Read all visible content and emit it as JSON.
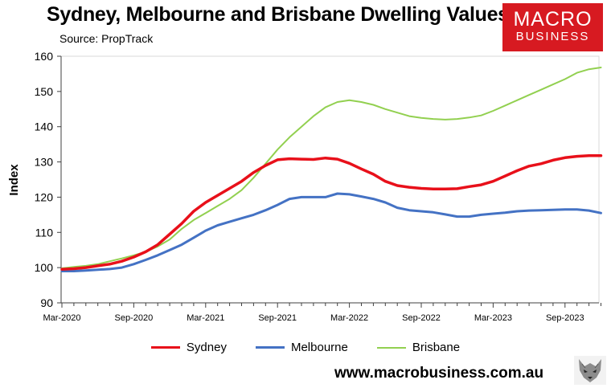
{
  "header": {
    "title": "Sydney, Melbourne and Brisbane Dwelling Values",
    "subtitle": "Source: PropTrack"
  },
  "logo": {
    "line1": "MACRO",
    "line2": "BUSINESS",
    "color": "#d71a21"
  },
  "footer": {
    "url": "www.macrobusiness.com.au"
  },
  "chart_data": {
    "type": "line",
    "ylabel": "Index",
    "ylim": [
      90,
      160
    ],
    "y_ticks": [
      90,
      100,
      110,
      120,
      130,
      140,
      150,
      160
    ],
    "x_tick_labels": [
      "Mar-2020",
      "Sep-2020",
      "Mar-2021",
      "Sep-2021",
      "Mar-2022",
      "Sep-2022",
      "Mar-2023",
      "Sep-2023"
    ],
    "x_tick_indices": [
      0,
      6,
      12,
      18,
      24,
      30,
      36,
      42
    ],
    "x": [
      "Mar-2020",
      "Apr-2020",
      "May-2020",
      "Jun-2020",
      "Jul-2020",
      "Aug-2020",
      "Sep-2020",
      "Oct-2020",
      "Nov-2020",
      "Dec-2020",
      "Jan-2021",
      "Feb-2021",
      "Mar-2021",
      "Apr-2021",
      "May-2021",
      "Jun-2021",
      "Jul-2021",
      "Aug-2021",
      "Sep-2021",
      "Oct-2021",
      "Nov-2021",
      "Dec-2021",
      "Jan-2022",
      "Feb-2022",
      "Mar-2022",
      "Apr-2022",
      "May-2022",
      "Jun-2022",
      "Jul-2022",
      "Aug-2022",
      "Sep-2022",
      "Oct-2022",
      "Nov-2022",
      "Dec-2022",
      "Jan-2023",
      "Feb-2023",
      "Mar-2023",
      "Apr-2023",
      "May-2023",
      "Jun-2023",
      "Jul-2023",
      "Aug-2023",
      "Sep-2023",
      "Oct-2023",
      "Nov-2023",
      "Dec-2023"
    ],
    "grid": false,
    "legend_position": "bottom",
    "series": [
      {
        "name": "Sydney",
        "color": "#e8101a",
        "width": 3.5,
        "values": [
          99.5,
          99.7,
          100.0,
          100.5,
          101.0,
          101.8,
          103.0,
          104.5,
          106.5,
          109.5,
          112.5,
          116.0,
          118.5,
          120.5,
          122.5,
          124.5,
          127.0,
          129.0,
          130.6,
          130.9,
          130.8,
          130.7,
          131.1,
          130.8,
          129.6,
          128.0,
          126.5,
          124.5,
          123.3,
          122.8,
          122.5,
          122.3,
          122.3,
          122.4,
          123.0,
          123.5,
          124.5,
          126.0,
          127.5,
          128.8,
          129.5,
          130.5,
          131.2,
          131.6,
          131.8,
          131.8
        ]
      },
      {
        "name": "Melbourne",
        "color": "#4472c4",
        "width": 3,
        "values": [
          99.0,
          99.0,
          99.2,
          99.4,
          99.6,
          100.0,
          101.0,
          102.2,
          103.5,
          105.0,
          106.5,
          108.5,
          110.5,
          112.0,
          113.0,
          114.0,
          115.0,
          116.3,
          117.8,
          119.5,
          120.0,
          120.0,
          120.0,
          121.0,
          120.8,
          120.2,
          119.5,
          118.5,
          117.0,
          116.3,
          116.0,
          115.7,
          115.1,
          114.5,
          114.5,
          115.0,
          115.3,
          115.6,
          116.0,
          116.2,
          116.3,
          116.4,
          116.5,
          116.5,
          116.2,
          115.5
        ]
      },
      {
        "name": "Brisbane",
        "color": "#92d050",
        "width": 2,
        "values": [
          99.8,
          100.2,
          100.5,
          101.0,
          101.8,
          102.6,
          103.5,
          104.5,
          106.0,
          108.0,
          111.0,
          113.5,
          115.5,
          117.5,
          119.5,
          122.0,
          125.5,
          129.5,
          133.5,
          137.0,
          140.0,
          143.0,
          145.5,
          147.0,
          147.5,
          147.0,
          146.2,
          145.0,
          144.0,
          143.0,
          142.5,
          142.2,
          142.0,
          142.2,
          142.6,
          143.2,
          144.5,
          146.0,
          147.5,
          149.0,
          150.5,
          152.0,
          153.5,
          155.3,
          156.3,
          156.8
        ]
      }
    ]
  }
}
